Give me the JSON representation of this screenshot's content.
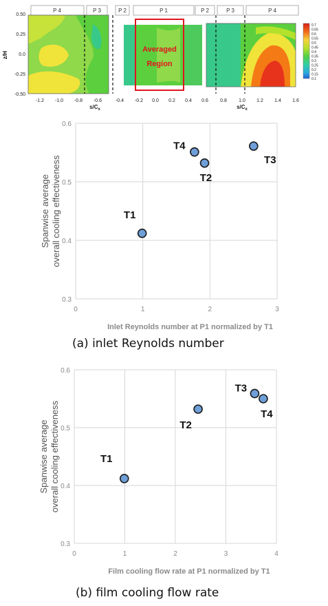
{
  "contour": {
    "z_label": "z/H",
    "s_label": "s/C",
    "s_sub": "x",
    "panels": [
      "P 4",
      "P 3",
      "P 2",
      "P 1",
      "P 2",
      "P 3",
      "P 4"
    ],
    "left_ticks": [
      "-1.2",
      "-1.0",
      "-0.8",
      "-0.6"
    ],
    "mid_ticks": [
      "-0.4",
      "-0.2",
      "0.0",
      "0.2",
      "0.4"
    ],
    "right_ticks": [
      "0.6",
      "0.8",
      "1.0",
      "1.2",
      "1.4",
      "1.6"
    ],
    "z_ticks": [
      "0.50",
      "0.25",
      "0.0",
      "-0.25",
      "-0.50"
    ],
    "region_label_1": "Averaged",
    "region_label_2": "Region",
    "colorbar_ticks": [
      "0.7",
      "0.65",
      "0.6",
      "0.55",
      "0.5",
      "0.45",
      "0.4",
      "0.35",
      "0.3",
      "0.25",
      "0.2",
      "0.15",
      "0.1"
    ],
    "colors": {
      "red": "#e8331c",
      "orange": "#f47a16",
      "yellow": "#f5e63a",
      "lime": "#b4e22c",
      "green": "#5ccf3e",
      "teal": "#38c98a",
      "region_box": "#e0141e"
    }
  },
  "chart_data": [
    {
      "type": "scatter",
      "title": "",
      "xlabel": "Inlet Reynolds number at P1 normalized by T1",
      "ylabel_line1": "Spanwise average",
      "ylabel_line2": "overall cooling effectiveness",
      "xlim": [
        0,
        3
      ],
      "ylim": [
        0.3,
        0.6
      ],
      "xticks": [
        0,
        1,
        2,
        3
      ],
      "yticks": [
        0.3,
        0.4,
        0.5,
        0.6
      ],
      "grid": true,
      "points": [
        {
          "label": "T1",
          "x": 0.99,
          "y": 0.412
        },
        {
          "label": "T2",
          "x": 1.92,
          "y": 0.532
        },
        {
          "label": "T3",
          "x": 2.65,
          "y": 0.561
        },
        {
          "label": "T4",
          "x": 1.77,
          "y": 0.551
        }
      ],
      "caption": "(a) inlet Reynolds number"
    },
    {
      "type": "scatter",
      "title": "",
      "xlabel": "Film cooling flow rate at P1 normalized by T1",
      "ylabel_line1": "Spanwise average",
      "ylabel_line2": "overall cooling effectiveness",
      "xlim": [
        0,
        4
      ],
      "ylim": [
        0.3,
        0.6
      ],
      "xticks": [
        0,
        1,
        2,
        3,
        4
      ],
      "yticks": [
        0.3,
        0.4,
        0.5,
        0.6
      ],
      "grid": true,
      "points": [
        {
          "label": "T1",
          "x": 0.99,
          "y": 0.412
        },
        {
          "label": "T2",
          "x": 2.45,
          "y": 0.532
        },
        {
          "label": "T3",
          "x": 3.57,
          "y": 0.559
        },
        {
          "label": "T4",
          "x": 3.74,
          "y": 0.55
        }
      ],
      "caption": "(b) film cooling flow rate"
    }
  ]
}
